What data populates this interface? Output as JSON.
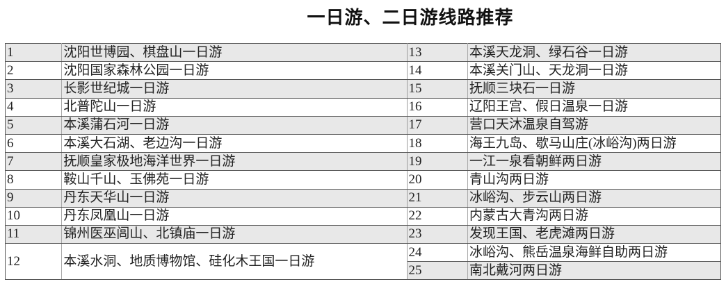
{
  "title": "一日游、二日游线路推荐",
  "left": [
    {
      "no": "1",
      "name": "沈阳世博园、棋盘山一日游"
    },
    {
      "no": "2",
      "name": "沈阳国家森林公园一日游"
    },
    {
      "no": "3",
      "name": "长影世纪城一日游"
    },
    {
      "no": "4",
      "name": "北普陀山一日游"
    },
    {
      "no": "5",
      "name": "本溪蒲石河一日游"
    },
    {
      "no": "6",
      "name": "本溪大石湖、老边沟一日游"
    },
    {
      "no": "7",
      "name": "抚顺皇家极地海洋世界一日游"
    },
    {
      "no": "8",
      "name": "鞍山千山、玉佛苑一日游"
    },
    {
      "no": "9",
      "name": "丹东天华山一日游"
    },
    {
      "no": "10",
      "name": "丹东凤凰山一日游"
    },
    {
      "no": "11",
      "name": "锦州医巫闾山、北镇庙一日游"
    },
    {
      "no": "12",
      "name": "本溪水洞、地质博物馆、硅化木王国一日游"
    }
  ],
  "right": [
    {
      "no": "13",
      "name": "本溪天龙洞、绿石谷一日游"
    },
    {
      "no": "14",
      "name": "本溪关门山、天龙洞一日游"
    },
    {
      "no": "15",
      "name": "抚顺三块石一日游"
    },
    {
      "no": "16",
      "name": "辽阳王宫、假日温泉一日游"
    },
    {
      "no": "17",
      "name": "营口天沐温泉自驾游"
    },
    {
      "no": "18",
      "name": "海王九岛、歇马山庄(冰峪沟)两日游"
    },
    {
      "no": "19",
      "name": "一江一泉看朝鲜两日游"
    },
    {
      "no": "20",
      "name": "青山沟两日游"
    },
    {
      "no": "21",
      "name": "冰峪沟、步云山两日游"
    },
    {
      "no": "22",
      "name": "内蒙古大青沟两日游"
    },
    {
      "no": "23",
      "name": "发现王国、老虎滩两日游"
    },
    {
      "no": "24",
      "name": "冰峪沟、熊岳温泉海鲜自助两日游"
    },
    {
      "no": "25",
      "name": "南北戴河两日游"
    }
  ],
  "colors": {
    "stripe": "#e8e8e8",
    "border": "#555555"
  }
}
